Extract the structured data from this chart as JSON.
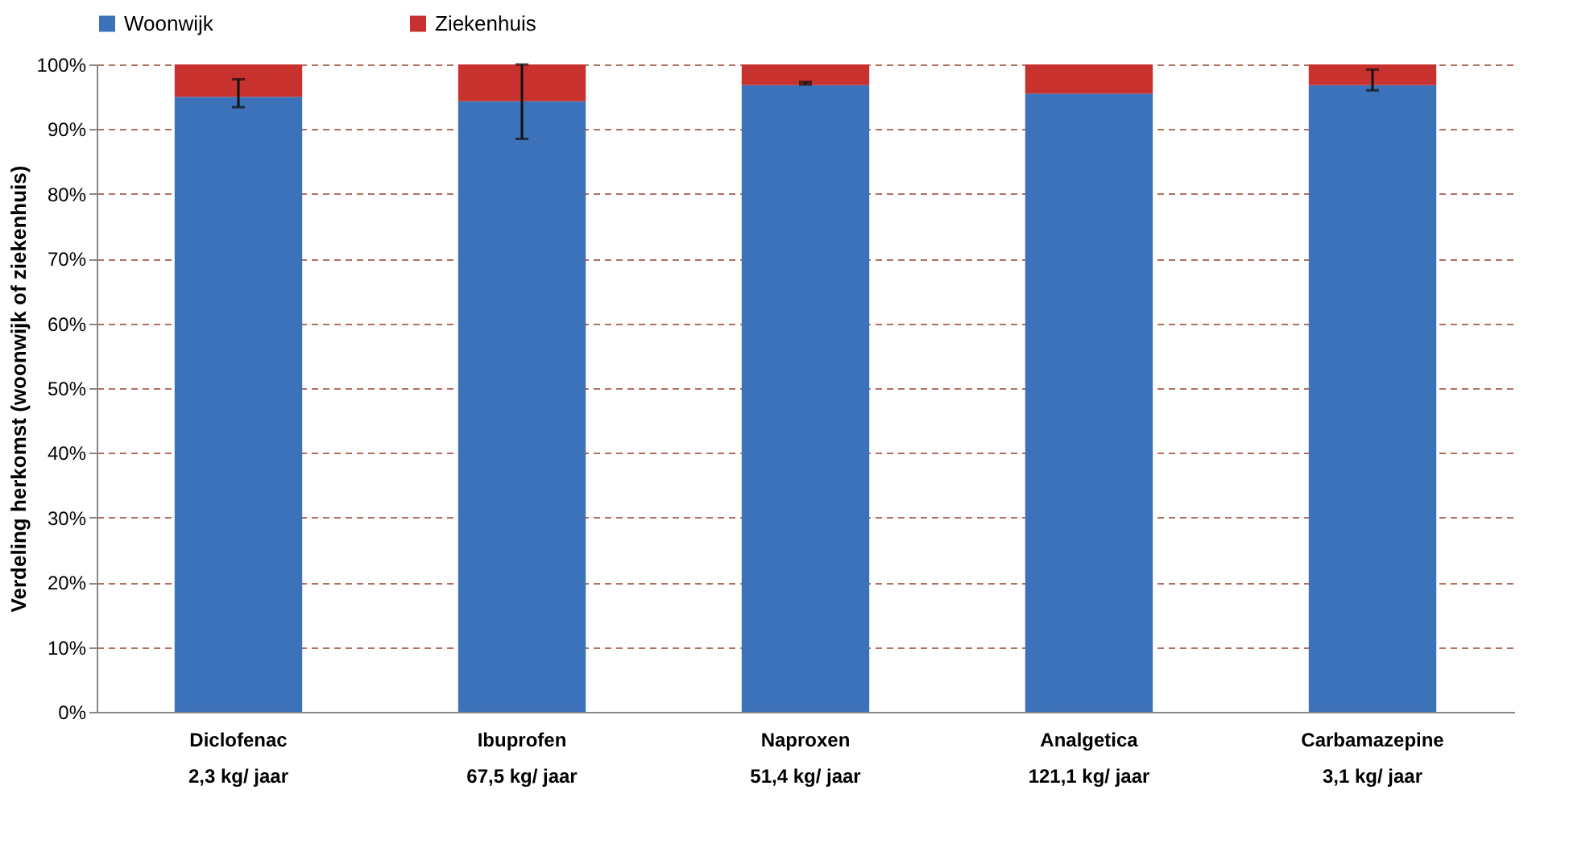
{
  "chart_data": {
    "type": "bar",
    "stacked": true,
    "ylabel": "Verdeling herkomst (woonwijk of ziekenhuis)",
    "categories": [
      "Diclofenac",
      "Ibuprofen",
      "Naproxen",
      "Analgetica",
      "Carbamazepine"
    ],
    "series": [
      {
        "name": "Woonwijk",
        "color": "#3b72b9",
        "values": [
          95.0,
          94.3,
          96.8,
          95.5,
          96.8
        ],
        "errors": [
          [
            93.4,
            97.7
          ],
          [
            88.5,
            100
          ],
          [
            96.9,
            97.3
          ],
          null,
          [
            96.0,
            99.2
          ]
        ]
      },
      {
        "name": "Ziekenhuis",
        "color": "#c8322e",
        "values": [
          5.0,
          5.7,
          3.2,
          4.5,
          3.2
        ]
      }
    ],
    "ylim": [
      0,
      100
    ],
    "yticks": [
      {
        "value": 0,
        "label": "0%"
      },
      {
        "value": 10,
        "label": "10%"
      },
      {
        "value": 20,
        "label": "20%"
      },
      {
        "value": 30,
        "label": "30%"
      },
      {
        "value": 40,
        "label": "40%"
      },
      {
        "value": 50,
        "label": "50%"
      },
      {
        "value": 60,
        "label": "60%"
      },
      {
        "value": 70,
        "label": "70%"
      },
      {
        "value": 80,
        "label": "80%"
      },
      {
        "value": 90,
        "label": "90%"
      },
      {
        "value": 100,
        "label": "100%"
      }
    ],
    "grid": "y",
    "legend": "top",
    "annotations": [
      "2,3 kg/ jaar",
      "67,5 kg/ jaar",
      "51,4 kg/ jaar",
      "121,1 kg/ jaar",
      "3,1 kg/ jaar"
    ]
  }
}
